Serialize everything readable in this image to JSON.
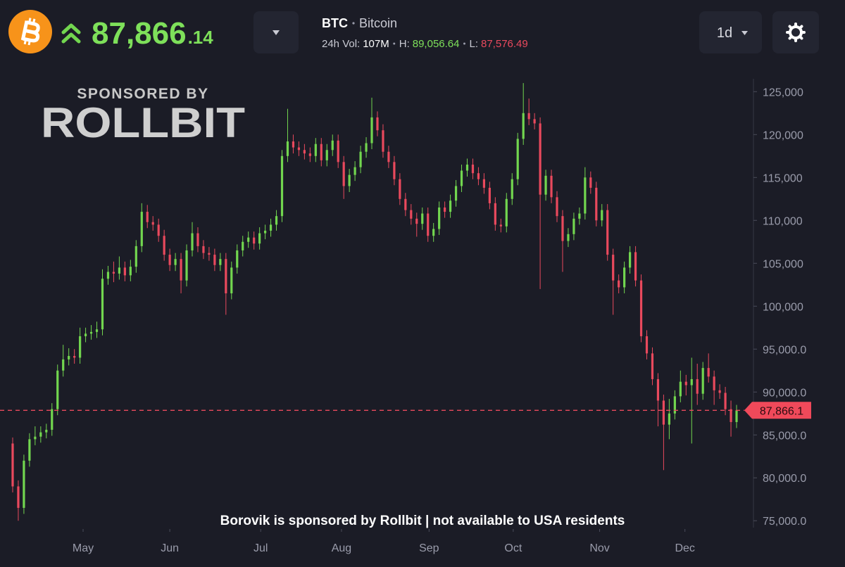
{
  "header": {
    "price_main": "87,866",
    "price_decimals": ".14",
    "symbol": "BTC",
    "name": "Bitcoin",
    "volume_label": "24h Vol:",
    "volume": "107M",
    "high_label": "H:",
    "high": "89,056.64",
    "low_label": "L:",
    "low": "87,576.49",
    "interval": "1d"
  },
  "chart_data": {
    "type": "candlestick",
    "sponsor_title": "SPONSORED BY",
    "sponsor_name": "ROLLBIT",
    "footnote": "Borovik is sponsored by Rollbit | not available to USA residents",
    "up_color": "#72d64f",
    "down_color": "#e9495d",
    "xlim": [
      0,
      130
    ],
    "xticks": [
      {
        "value": 13.05,
        "label": "May"
      },
      {
        "value": 28.5,
        "label": "Jun"
      },
      {
        "value": 44.7,
        "label": "Jul"
      },
      {
        "value": 59.1,
        "label": "Aug"
      },
      {
        "value": 74.7,
        "label": "Sep"
      },
      {
        "value": 89.7,
        "label": "Oct"
      },
      {
        "value": 105.1,
        "label": "Nov"
      },
      {
        "value": 120.3,
        "label": "Dec"
      }
    ],
    "ylim": [
      74200,
      126500
    ],
    "yticks": [
      {
        "value": 125000,
        "label": "125,000"
      },
      {
        "value": 120000,
        "label": "120,000"
      },
      {
        "value": 115000,
        "label": "115,000"
      },
      {
        "value": 110000,
        "label": "110,000"
      },
      {
        "value": 105000,
        "label": "105,000"
      },
      {
        "value": 100000,
        "label": "100,000"
      },
      {
        "value": 95000,
        "label": "95,000.0"
      },
      {
        "value": 90000,
        "label": "90,000.0"
      },
      {
        "value": 85000,
        "label": "85,000.0"
      },
      {
        "value": 80000,
        "label": "80,000.0"
      },
      {
        "value": 75000,
        "label": "75,000.0"
      }
    ],
    "price_line": {
      "value": 87866.1,
      "label": "87,866.1"
    },
    "open": [
      84000,
      79000,
      76500,
      82000,
      84500,
      84800,
      85300,
      85600,
      88000,
      92500,
      93800,
      94200,
      94000,
      96500,
      96800,
      97000,
      97300,
      103200,
      104000,
      103800,
      104500,
      103600,
      104600,
      107000,
      111000,
      109800,
      109500,
      108200,
      106000,
      104800,
      105500,
      103000,
      106500,
      108500,
      107000,
      106200,
      106000,
      104800,
      105500,
      101500,
      104500,
      106500,
      107500,
      108000,
      107300,
      108500,
      108800,
      109500,
      110500,
      117500,
      119200,
      118500,
      118200,
      117800,
      117500,
      118900,
      117000,
      118200,
      119300,
      116800,
      114000,
      115300,
      116200,
      118000,
      119000,
      122000,
      120500,
      118000,
      116800,
      114800,
      112500,
      111200,
      110200,
      109600,
      110800,
      108200,
      109000,
      111500,
      111000,
      112300,
      114000,
      115800,
      116500,
      115500,
      114800,
      113800,
      112000,
      109500,
      109300,
      112500,
      114800,
      119500,
      122500,
      121800,
      121300,
      113000,
      115200,
      112700,
      110500,
      107600,
      108400,
      110200,
      110800,
      115000,
      113800,
      110000,
      111200,
      106000,
      103000,
      102200,
      104500,
      106300,
      103000,
      96500,
      94500,
      91500,
      89000,
      86200,
      87500,
      89500,
      91200,
      90800,
      91500,
      89800,
      92800,
      91800,
      90200,
      89900,
      88000,
      86500
    ],
    "high": [
      84700,
      79700,
      82700,
      85200,
      86000,
      86000,
      86300,
      88700,
      93200,
      95500,
      95100,
      95000,
      97500,
      97500,
      97800,
      98200,
      104300,
      104700,
      105200,
      105800,
      105200,
      105400,
      107700,
      112000,
      111800,
      110500,
      110200,
      108900,
      106700,
      106200,
      106200,
      107200,
      109800,
      109200,
      107700,
      106900,
      106700,
      106200,
      106200,
      105200,
      107200,
      108200,
      108700,
      108700,
      109200,
      109500,
      110200,
      111200,
      118200,
      123000,
      120000,
      119200,
      118900,
      118500,
      119600,
      119600,
      118900,
      120000,
      120000,
      117500,
      116000,
      116900,
      118700,
      119700,
      124300,
      122700,
      121200,
      118700,
      117500,
      115500,
      113200,
      111900,
      110900,
      111500,
      111500,
      109700,
      112200,
      112200,
      113000,
      114700,
      116500,
      117200,
      117200,
      116200,
      115500,
      114500,
      112700,
      110200,
      113200,
      115500,
      120200,
      126000,
      124200,
      122500,
      122000,
      115900,
      115900,
      113400,
      111200,
      109100,
      110900,
      111500,
      116200,
      115700,
      114500,
      111900,
      111900,
      106700,
      103700,
      105200,
      107000,
      107000,
      103700,
      97200,
      95200,
      92200,
      89700,
      89200,
      90200,
      92500,
      92000,
      94000,
      93300,
      93500,
      94500,
      92500,
      90900,
      90600,
      89000,
      88500
    ],
    "low": [
      78300,
      75000,
      75800,
      81300,
      83800,
      84100,
      84600,
      84900,
      87300,
      91800,
      93100,
      93300,
      93300,
      95800,
      96100,
      96300,
      96600,
      102500,
      102800,
      103100,
      102900,
      102900,
      103900,
      106300,
      109100,
      108800,
      107500,
      105300,
      104100,
      104100,
      101500,
      102300,
      105800,
      106300,
      105500,
      105300,
      104100,
      104100,
      99000,
      100800,
      103800,
      105800,
      106800,
      106600,
      106600,
      107800,
      108100,
      108800,
      109800,
      116800,
      117800,
      117500,
      117100,
      116800,
      116800,
      116300,
      116300,
      117500,
      116100,
      112500,
      113300,
      114600,
      115500,
      117300,
      118300,
      119800,
      117300,
      116100,
      114100,
      111800,
      110500,
      109500,
      108100,
      108900,
      107500,
      107500,
      108300,
      110300,
      110300,
      111600,
      113300,
      115100,
      114800,
      114100,
      113100,
      111300,
      108800,
      108600,
      108600,
      111800,
      114100,
      118800,
      121100,
      120600,
      102000,
      112300,
      112000,
      109800,
      104000,
      106900,
      107700,
      109500,
      110100,
      113100,
      109300,
      109300,
      105300,
      99000,
      101500,
      101500,
      103800,
      102300,
      95800,
      93800,
      90800,
      86000,
      80900,
      84500,
      86800,
      88800,
      89600,
      84000,
      88500,
      89100,
      91100,
      88500,
      89200,
      87300,
      84800,
      85800
    ],
    "close": [
      79000,
      76500,
      82000,
      84500,
      84800,
      85300,
      85600,
      88000,
      92500,
      93800,
      94200,
      94000,
      96500,
      96800,
      97000,
      97300,
      103200,
      104000,
      103800,
      104500,
      103600,
      104600,
      107000,
      111000,
      109800,
      109500,
      108200,
      106000,
      104800,
      105500,
      103000,
      106500,
      108500,
      107000,
      106200,
      106000,
      104800,
      105500,
      101500,
      104500,
      106500,
      107500,
      108000,
      107300,
      108500,
      108800,
      109500,
      110500,
      117500,
      119200,
      118500,
      118200,
      117800,
      117500,
      118900,
      117000,
      118200,
      119300,
      116800,
      114000,
      115300,
      116200,
      118000,
      119000,
      122000,
      120500,
      118000,
      116800,
      114800,
      112500,
      111200,
      110200,
      109600,
      110800,
      108200,
      109000,
      111500,
      111000,
      112300,
      114000,
      115800,
      116500,
      115500,
      114800,
      113800,
      112000,
      109500,
      109300,
      112500,
      114800,
      119500,
      122500,
      121800,
      121300,
      113000,
      115200,
      112700,
      110500,
      107600,
      108400,
      110200,
      110800,
      115000,
      113800,
      110000,
      111200,
      106000,
      103000,
      102200,
      104500,
      106300,
      103000,
      96500,
      94500,
      91500,
      89000,
      86200,
      87500,
      89500,
      91200,
      90800,
      91500,
      89800,
      92800,
      91800,
      90200,
      89900,
      88000,
      86500,
      87866
    ]
  }
}
